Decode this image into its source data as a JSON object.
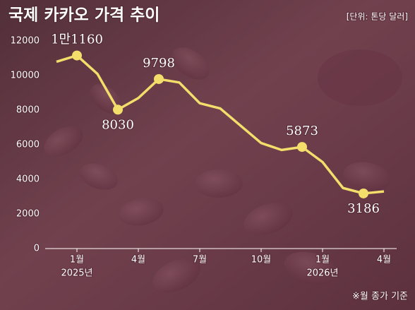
{
  "chart_data": {
    "type": "line",
    "title": "국제 카카오 가격 추이",
    "unit": "[단위: 톤당 달러]",
    "footnote": "※월 종가 기준",
    "categories": [
      null,
      "1월",
      null,
      null,
      "4월",
      null,
      null,
      "7월",
      null,
      null,
      "10월",
      null,
      null,
      "1월",
      null,
      null,
      "4월"
    ],
    "years": [
      null,
      "2025년",
      null,
      null,
      null,
      null,
      null,
      null,
      null,
      null,
      null,
      null,
      null,
      "2026년",
      null,
      null,
      null
    ],
    "series": [
      {
        "color": "#f3de6c",
        "values": [
          10800,
          11160,
          10100,
          8030,
          8700,
          9798,
          9600,
          8400,
          8100,
          7100,
          6100,
          5700,
          5873,
          5000,
          3500,
          3186,
          3300
        ],
        "value_labels": [
          null,
          "1만1160",
          null,
          "8030",
          null,
          "9798",
          null,
          null,
          null,
          null,
          null,
          null,
          "5873",
          null,
          null,
          "3186",
          null
        ]
      }
    ],
    "ylim": [
      0,
      12000
    ],
    "yticks": [
      0,
      2000,
      4000,
      6000,
      8000,
      10000,
      12000
    ]
  }
}
